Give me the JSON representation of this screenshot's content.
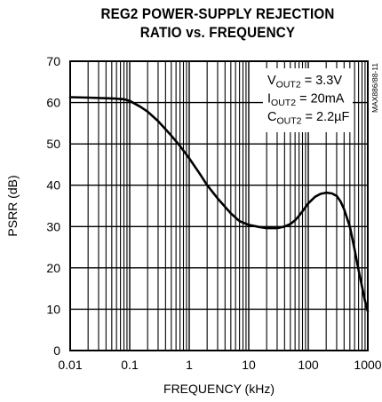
{
  "chart_data": {
    "type": "line",
    "title_lines": [
      "REG2 POWER-SUPPLY REJECTION",
      "RATIO vs. FREQUENCY"
    ],
    "xlabel": "FREQUENCY (kHz)",
    "ylabel": "PSRR (dB)",
    "x_scale": "log",
    "xlim": [
      0.01,
      1000
    ],
    "ylim": [
      0,
      70
    ],
    "x_ticks": [
      "0.01",
      "0.1",
      "1",
      "10",
      "100",
      "1000"
    ],
    "y_ticks": [
      "0",
      "10",
      "20",
      "30",
      "40",
      "50",
      "60",
      "70"
    ],
    "grid": true,
    "annotations": [
      {
        "main": "V",
        "sub": "OUT2",
        "rest": " = 3.3V"
      },
      {
        "main": "I",
        "sub": "OUT2",
        "rest": " = 20mA"
      },
      {
        "main": "C",
        "sub": "OUT2",
        "rest": " = 2.2µF"
      }
    ],
    "figure_id": "MAX886/88-11",
    "series": [
      {
        "x": [
          0.01,
          0.02,
          0.05,
          0.08,
          0.1,
          0.15,
          0.2,
          0.3,
          0.5,
          0.7,
          1,
          1.5,
          2,
          3,
          5,
          7,
          10,
          15,
          20,
          30,
          40,
          50,
          60,
          70,
          80,
          100,
          130,
          160,
          200,
          250,
          300,
          350,
          400,
          500,
          600,
          700,
          800,
          900,
          1000
        ],
        "y": [
          61.3,
          61.2,
          61.0,
          60.8,
          60.4,
          59.0,
          57.8,
          55.5,
          52.0,
          49.5,
          46.5,
          42.8,
          40.0,
          36.8,
          33.2,
          31.3,
          30.4,
          29.9,
          29.6,
          29.6,
          30.0,
          30.6,
          31.5,
          32.6,
          33.7,
          35.6,
          37.2,
          37.9,
          38.2,
          38.0,
          37.4,
          36.0,
          34.2,
          30.0,
          24.5,
          19.5,
          15.5,
          12.0,
          9.5
        ],
        "color": "#000000"
      }
    ]
  }
}
